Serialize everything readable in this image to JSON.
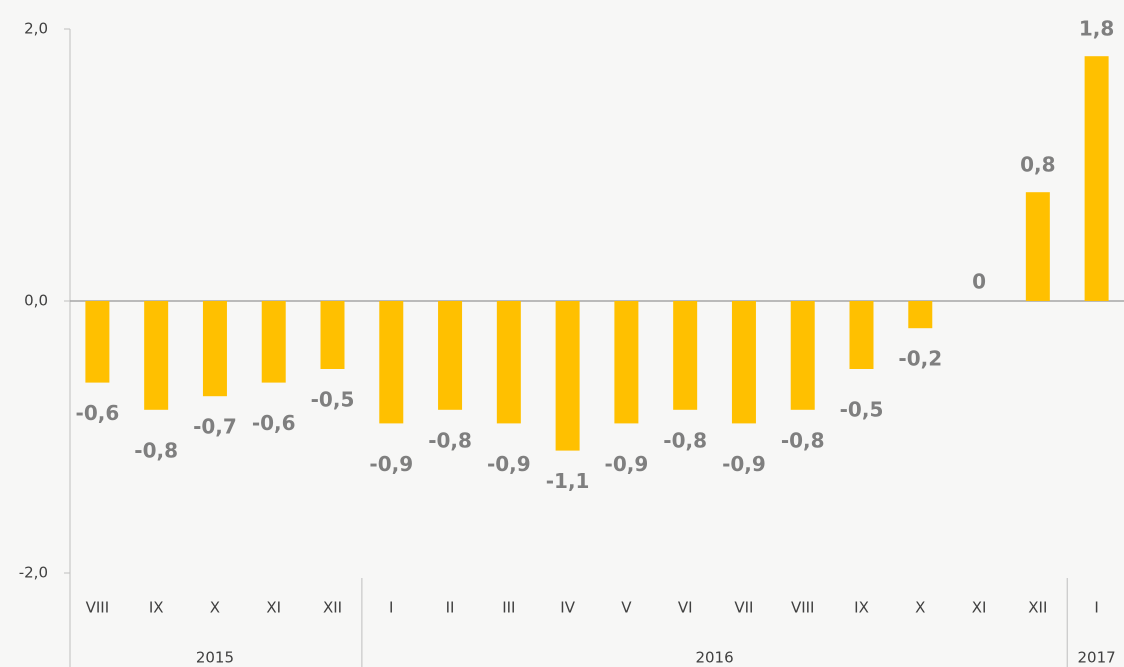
{
  "chart_data": {
    "type": "bar",
    "groups": [
      {
        "name": "2015",
        "categories": [
          "VIII",
          "IX",
          "X",
          "XI",
          "XII"
        ]
      },
      {
        "name": "2016",
        "categories": [
          "I",
          "II",
          "III",
          "IV",
          "V",
          "VI",
          "VII",
          "VIII",
          "IX",
          "X",
          "XI",
          "XII"
        ]
      },
      {
        "name": "2017",
        "categories": [
          "I"
        ]
      }
    ],
    "values": [
      -0.6,
      -0.8,
      -0.7,
      -0.6,
      -0.5,
      -0.9,
      -0.8,
      -0.9,
      -1.1,
      -0.9,
      -0.8,
      -0.9,
      -0.8,
      -0.5,
      -0.2,
      0,
      0.8,
      1.8
    ],
    "value_labels": [
      "-0,6",
      "-0,8",
      "-0,7",
      "-0,6",
      "-0,5",
      "-0,9",
      "-0,8",
      "-0,9",
      "-1,1",
      "-0,9",
      "-0,8",
      "-0,9",
      "-0,8",
      "-0,5",
      "-0,2",
      "0",
      "0,8",
      "1,8"
    ],
    "color": "#ffc000",
    "ylim": [
      -2,
      2
    ],
    "yticks": [
      {
        "value": -2,
        "label": "-2,0"
      },
      {
        "value": 0,
        "label": "0,0"
      },
      {
        "value": 2,
        "label": "2,0"
      }
    ]
  }
}
